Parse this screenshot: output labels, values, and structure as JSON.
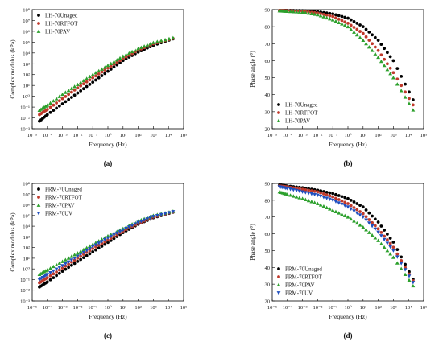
{
  "chart_data": [
    {
      "panel": "a",
      "caption": "(a)",
      "type": "scatter",
      "xlabel": "Frequency (Hz)",
      "ylabel": "Complex modulus (kPa)",
      "xscale": "log",
      "yscale": "log",
      "xlim": [
        1e-05,
        100000
      ],
      "ylim": [
        0.001,
        100000000
      ],
      "xticks": [
        "10⁻⁵",
        "10⁻⁴",
        "10⁻³",
        "10⁻²",
        "10⁻¹",
        "10⁰",
        "10¹",
        "10²",
        "10³",
        "10⁴",
        "10⁵"
      ],
      "yticks": [
        "10⁻³",
        "10⁻²",
        "10⁻¹",
        "10⁰",
        "10¹",
        "10²",
        "10³",
        "10⁴",
        "10⁵",
        "10⁶",
        "10⁷",
        "10⁸"
      ],
      "legend_position": "top-left",
      "grid": false,
      "series": [
        {
          "name": "LH-70Unaged",
          "color": "#000000",
          "marker": "circle",
          "x": [
            3e-05,
            0.0001,
            0.001,
            0.01,
            0.1,
            1,
            10,
            100,
            1000,
            20000
          ],
          "y": [
            0.005,
            0.02,
            0.2,
            2,
            20,
            200,
            2000,
            12000,
            50000,
            200000
          ]
        },
        {
          "name": "LH-70RTFOT",
          "color": "#c0392b",
          "marker": "circle",
          "x": [
            3e-05,
            0.0001,
            0.001,
            0.01,
            0.1,
            1,
            10,
            100,
            1000,
            20000
          ],
          "y": [
            0.02,
            0.06,
            0.6,
            6,
            50,
            400,
            3000,
            18000,
            70000,
            220000
          ]
        },
        {
          "name": "LH-70PAV",
          "color": "#2ca02c",
          "marker": "triangle",
          "x": [
            3e-05,
            0.0001,
            0.001,
            0.01,
            0.1,
            1,
            10,
            100,
            1000,
            20000
          ],
          "y": [
            0.05,
            0.15,
            1.5,
            12,
            100,
            700,
            5000,
            25000,
            90000,
            250000
          ]
        }
      ]
    },
    {
      "panel": "b",
      "caption": "(b)",
      "type": "scatter",
      "xlabel": "Frequency (Hz)",
      "ylabel": "Phase angle (°)",
      "xscale": "log",
      "yscale": "linear",
      "xlim": [
        1e-05,
        100000
      ],
      "ylim": [
        20,
        90
      ],
      "xticks": [
        "10⁻⁵",
        "10⁻⁴",
        "10⁻³",
        "10⁻²",
        "10⁻¹",
        "10⁰",
        "10¹",
        "10²",
        "10³",
        "10⁴",
        "10⁵"
      ],
      "yticks": [
        "20",
        "30",
        "40",
        "50",
        "60",
        "70",
        "80",
        "90"
      ],
      "legend_position": "bottom-left",
      "grid": false,
      "series": [
        {
          "name": "LH-70Unaged",
          "color": "#000000",
          "marker": "circle",
          "x": [
            3e-05,
            0.0001,
            0.001,
            0.01,
            0.1,
            1,
            10,
            100,
            1000,
            20000
          ],
          "y": [
            89.5,
            89.6,
            89.4,
            88.8,
            87.5,
            85,
            80,
            72,
            60,
            37
          ]
        },
        {
          "name": "LH-70RTFOT",
          "color": "#c0392b",
          "marker": "circle",
          "x": [
            3e-05,
            0.0001,
            0.001,
            0.01,
            0.1,
            1,
            10,
            100,
            1000,
            20000
          ],
          "y": [
            89.5,
            89.4,
            89,
            88,
            86,
            82,
            76,
            66,
            53,
            34
          ]
        },
        {
          "name": "LH-70PAV",
          "color": "#2ca02c",
          "marker": "triangle",
          "x": [
            3e-05,
            0.0001,
            0.001,
            0.01,
            0.1,
            1,
            10,
            100,
            1000,
            20000
          ],
          "y": [
            89.3,
            89,
            88.5,
            87,
            84,
            80,
            72,
            62,
            50,
            31
          ]
        }
      ]
    },
    {
      "panel": "c",
      "caption": "(c)",
      "type": "scatter",
      "xlabel": "Frequency (Hz)",
      "ylabel": "Complex modulus (kPa)",
      "xscale": "log",
      "yscale": "log",
      "xlim": [
        1e-05,
        100000
      ],
      "ylim": [
        0.001,
        100000000
      ],
      "xticks": [
        "10⁻⁵",
        "10⁻⁴",
        "10⁻³",
        "10⁻²",
        "10⁻¹",
        "10⁰",
        "10¹",
        "10²",
        "10³",
        "10⁴",
        "10⁵"
      ],
      "yticks": [
        "10⁻³",
        "10⁻²",
        "10⁻¹",
        "10⁰",
        "10¹",
        "10²",
        "10³",
        "10⁴",
        "10⁵",
        "10⁶",
        "10⁷",
        "10⁸"
      ],
      "legend_position": "top-left",
      "grid": false,
      "series": [
        {
          "name": "PRM-70Unaged",
          "color": "#000000",
          "marker": "circle",
          "x": [
            3e-05,
            0.0001,
            0.001,
            0.01,
            0.1,
            1,
            10,
            100,
            1000,
            20000
          ],
          "y": [
            0.02,
            0.06,
            0.6,
            5,
            40,
            300,
            2500,
            15000,
            60000,
            200000
          ]
        },
        {
          "name": "PRM-70RTFOT",
          "color": "#c0392b",
          "marker": "circle",
          "x": [
            3e-05,
            0.0001,
            0.001,
            0.01,
            0.1,
            1,
            10,
            100,
            1000,
            20000
          ],
          "y": [
            0.05,
            0.15,
            1.2,
            10,
            80,
            500,
            3500,
            18000,
            70000,
            210000
          ]
        },
        {
          "name": "PRM-70PAV",
          "color": "#2ca02c",
          "marker": "triangle",
          "x": [
            3e-05,
            0.0001,
            0.001,
            0.01,
            0.1,
            1,
            10,
            100,
            1000,
            20000
          ],
          "y": [
            0.3,
            0.8,
            5,
            30,
            200,
            1200,
            6000,
            30000,
            100000,
            250000
          ]
        },
        {
          "name": "PRM-70UV",
          "color": "#1f4fbf",
          "marker": "triangle-down",
          "x": [
            3e-05,
            0.0001,
            0.001,
            0.01,
            0.1,
            1,
            10,
            100,
            1000,
            20000
          ],
          "y": [
            0.1,
            0.3,
            2,
            15,
            120,
            800,
            4500,
            22000,
            80000,
            230000
          ]
        }
      ]
    },
    {
      "panel": "d",
      "caption": "(d)",
      "type": "scatter",
      "xlabel": "Frequency (Hz)",
      "ylabel": "Phase angle (°)",
      "xscale": "log",
      "yscale": "linear",
      "xlim": [
        1e-05,
        100000
      ],
      "ylim": [
        20,
        90
      ],
      "xticks": [
        "10⁻⁵",
        "10⁻⁴",
        "10⁻³",
        "10⁻²",
        "10⁻¹",
        "10⁰",
        "10¹",
        "10²",
        "10³",
        "10⁴",
        "10⁵"
      ],
      "yticks": [
        "20",
        "30",
        "40",
        "50",
        "60",
        "70",
        "80",
        "90"
      ],
      "legend_position": "bottom-left",
      "grid": false,
      "series": [
        {
          "name": "PRM-70Unaged",
          "color": "#000000",
          "marker": "circle",
          "x": [
            3e-05,
            0.0001,
            0.001,
            0.01,
            0.1,
            1,
            10,
            100,
            1000,
            20000
          ],
          "y": [
            89,
            88.5,
            87.5,
            86,
            84,
            81,
            76,
            67,
            55,
            33
          ]
        },
        {
          "name": "PRM-70RTFOT",
          "color": "#c0392b",
          "marker": "circle",
          "x": [
            3e-05,
            0.0001,
            0.001,
            0.01,
            0.1,
            1,
            10,
            100,
            1000,
            20000
          ],
          "y": [
            88.5,
            88,
            86.5,
            85,
            82,
            78,
            72,
            63,
            52,
            32
          ]
        },
        {
          "name": "PRM-70PAV",
          "color": "#2ca02c",
          "marker": "triangle",
          "x": [
            3e-05,
            0.0001,
            0.001,
            0.01,
            0.1,
            1,
            10,
            100,
            1000,
            20000
          ],
          "y": [
            85,
            83.5,
            81,
            78,
            74,
            70,
            64,
            56,
            46,
            29
          ]
        },
        {
          "name": "PRM-70UV",
          "color": "#1f4fbf",
          "marker": "triangle-down",
          "x": [
            3e-05,
            0.0001,
            0.001,
            0.01,
            0.1,
            1,
            10,
            100,
            1000,
            20000
          ],
          "y": [
            88,
            87,
            85,
            83,
            80,
            76,
            70,
            61,
            50,
            31
          ]
        }
      ]
    }
  ]
}
